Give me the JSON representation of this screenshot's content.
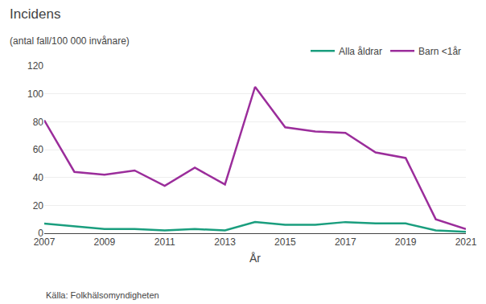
{
  "chart_data": {
    "type": "line",
    "title": "Incidens",
    "subtitle": "(antal fall/100 000 invånare)",
    "x_label": "År",
    "annotations": [
      "Källa: Folkhälsomyndigheten"
    ],
    "x": [
      2007,
      2008,
      2009,
      2010,
      2011,
      2012,
      2013,
      2014,
      2015,
      2016,
      2017,
      2018,
      2019,
      2020,
      2021
    ],
    "series": [
      {
        "name": "Alla åldrar",
        "color": "#1a9e7e",
        "values": [
          7,
          5,
          3,
          3,
          2,
          3,
          2,
          8,
          6,
          6,
          8,
          7,
          7,
          2,
          1
        ]
      },
      {
        "name": "Barn <1år",
        "color": "#9b2d9b",
        "values": [
          81,
          44,
          42,
          45,
          34,
          47,
          35,
          105,
          76,
          73,
          72,
          58,
          54,
          10,
          3
        ]
      }
    ],
    "xlim": [
      2007,
      2021
    ],
    "xticks": [
      2007,
      2009,
      2011,
      2013,
      2015,
      2017,
      2019,
      2021
    ],
    "ylim": [
      0,
      120
    ],
    "yticks": [
      0,
      20,
      40,
      60,
      80,
      100,
      120
    ],
    "grid": true,
    "legend": "top"
  }
}
